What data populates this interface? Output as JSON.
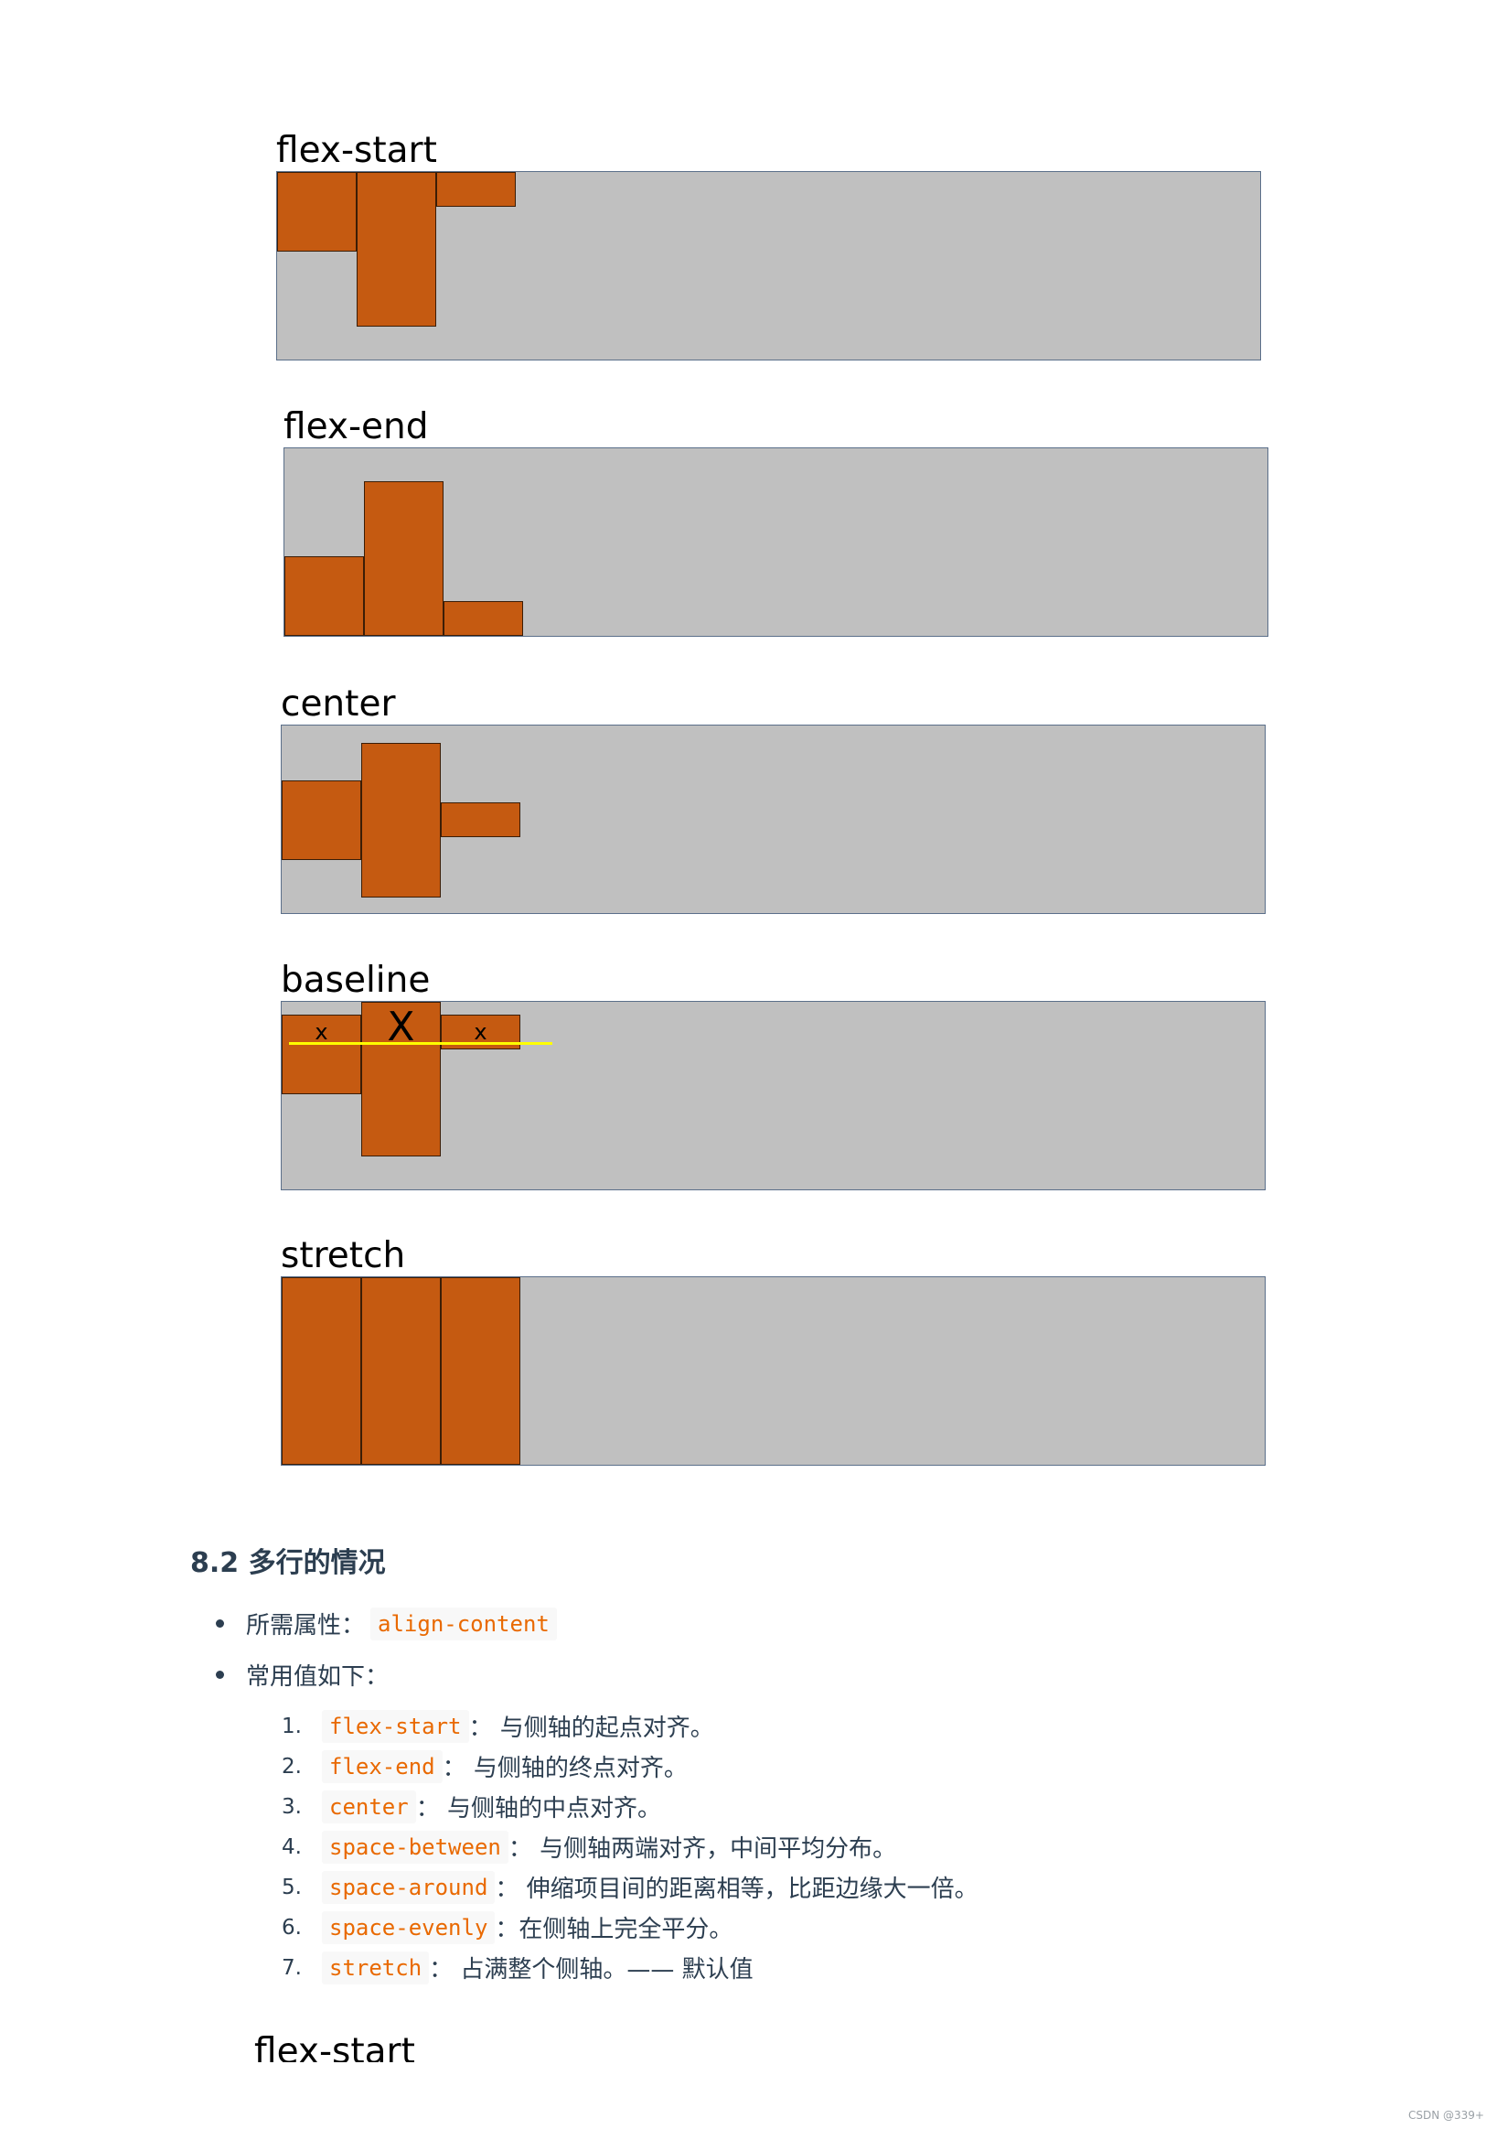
{
  "diagrams": [
    {
      "title": "flex-start"
    },
    {
      "title": "flex-end"
    },
    {
      "title": "center"
    },
    {
      "title": "baseline",
      "item_labels": [
        "x",
        "X",
        "x"
      ]
    },
    {
      "title": "stretch"
    }
  ],
  "colors": {
    "container": "#c0c0c0",
    "container_border": "#5b6f8a",
    "item": "#c55a11",
    "baseline_line": "#ffff00",
    "inline_code": "#e96900"
  },
  "section": {
    "heading": "8.2 多行的情况",
    "bullets": [
      {
        "label": "所需属性：",
        "code": "align-content"
      },
      {
        "label": "常用值如下："
      }
    ],
    "values": [
      {
        "num": "1.",
        "code": "flex-start",
        "desc": "： 与侧轴的起点对齐。"
      },
      {
        "num": "2.",
        "code": "flex-end",
        "desc": "： 与侧轴的终点对齐。"
      },
      {
        "num": "3.",
        "code": "center",
        "desc": "： 与侧轴的中点对齐。"
      },
      {
        "num": "4.",
        "code": "space-between",
        "desc": "： 与侧轴两端对齐，中间平均分布。"
      },
      {
        "num": "5.",
        "code": "space-around",
        "desc": "： 伸缩项目间的距离相等，比距边缘大一倍。"
      },
      {
        "num": "6.",
        "code": "space-evenly",
        "desc": "：在侧轴上完全平分。"
      },
      {
        "num": "7.",
        "code": "stretch",
        "desc": "： 占满整个侧轴。—— 默认值"
      }
    ]
  },
  "next_title": "flex-start",
  "watermark": "CSDN @339+"
}
